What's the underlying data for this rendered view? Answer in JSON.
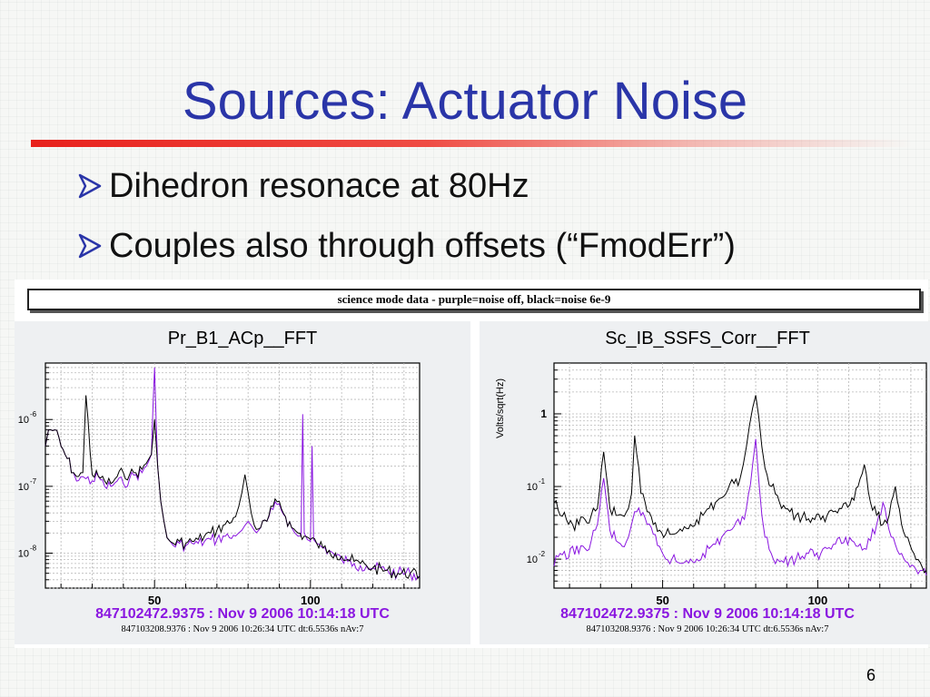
{
  "slide": {
    "title": "Sources: Actuator Noise",
    "bullets": [
      "Dihedron resonace at 80Hz",
      "Couples also through offsets (“FmodErr”)"
    ],
    "page_number": "6",
    "colors": {
      "title": "#2a35a8",
      "rule": "#e8211c",
      "bullet_arrow": "#2a35a8"
    }
  },
  "figure": {
    "banner": "science mode data - purple=noise off, black=noise 6e-9",
    "colors": {
      "noise_off": "#8a16e0",
      "noise_on": "#000000"
    }
  },
  "chart_data": [
    {
      "type": "line",
      "title": "Pr_B1_ACp__FFT",
      "xlabel": "",
      "ylabel": "",
      "xlim": [
        15,
        135
      ],
      "ylim": [
        3e-09,
        7e-06
      ],
      "yscale": "log",
      "grid": true,
      "x_ticks": [
        {
          "v": 50,
          "label": "50"
        },
        {
          "v": 100,
          "label": "100"
        }
      ],
      "y_ticks": [
        {
          "v": 1e-06,
          "base": "10",
          "exp": "-6"
        },
        {
          "v": 1e-07,
          "base": "10",
          "exp": "-7"
        },
        {
          "v": 1e-08,
          "base": "10",
          "exp": "-8"
        }
      ],
      "series": [
        {
          "legend_key": "noise off",
          "color": "#8a16e0",
          "x": [
            15,
            16,
            18,
            20,
            22,
            24,
            25,
            27,
            28,
            30,
            32,
            34,
            36,
            38,
            40,
            42,
            44,
            46,
            48,
            49,
            49.5,
            50,
            50.5,
            51,
            52,
            53,
            54,
            55,
            56,
            58,
            60,
            62,
            64,
            66,
            68,
            70,
            72,
            74,
            76,
            77,
            78,
            79,
            80,
            81,
            82,
            84,
            86,
            88,
            90,
            92,
            94,
            95,
            96,
            97,
            97.5,
            98,
            99,
            100,
            100.5,
            101,
            102,
            104,
            106,
            108,
            110,
            112,
            114,
            116,
            118,
            120,
            124,
            128,
            132,
            135
          ],
          "y": [
            4e-07,
            7e-07,
            7e-07,
            4e-07,
            2.6e-07,
            1.6e-07,
            1.2e-07,
            1.4e-07,
            1.3e-07,
            1.2e-07,
            1.4e-07,
            1e-07,
            1e-07,
            1.2e-07,
            1.1e-07,
            1.3e-07,
            1.5e-07,
            1.6e-07,
            2.3e-07,
            3e-07,
            1.5e-06,
            6e-06,
            1e-06,
            2e-07,
            6e-08,
            3e-08,
            1.7e-08,
            1.5e-08,
            1.3e-08,
            1.4e-08,
            1.3e-08,
            1.4e-08,
            1.4e-08,
            1.5e-08,
            1.6e-08,
            1.6e-08,
            1.8e-08,
            1.7e-08,
            1.8e-08,
            2e-08,
            2.2e-08,
            2.6e-08,
            3e-08,
            2.6e-08,
            2.2e-08,
            2.4e-08,
            3e-08,
            4.5e-08,
            5.5e-08,
            3.5e-08,
            2.4e-08,
            2e-08,
            1.8e-08,
            1.8e-08,
            1.2e-06,
            2e-08,
            1.6e-08,
            1.5e-08,
            4e-07,
            1.6e-08,
            1.4e-08,
            1.2e-08,
            1.1e-08,
            9e-09,
            8e-09,
            7.5e-09,
            7e-09,
            6.5e-09,
            6.5e-09,
            6e-09,
            5.5e-09,
            5e-09,
            5e-09,
            4.5e-09
          ]
        },
        {
          "legend_key": "noise 6e-9",
          "color": "#000000",
          "x": [
            15,
            16,
            18,
            20,
            22,
            24,
            25,
            27,
            28,
            30,
            32,
            34,
            36,
            38,
            40,
            42,
            44,
            46,
            48,
            49,
            50,
            51,
            52,
            53,
            54,
            55,
            56,
            58,
            60,
            62,
            64,
            66,
            68,
            70,
            72,
            74,
            76,
            77,
            78,
            79,
            80,
            81,
            82,
            84,
            86,
            88,
            90,
            92,
            94,
            96,
            98,
            100,
            102,
            104,
            106,
            108,
            110,
            112,
            114,
            116,
            118,
            120,
            124,
            128,
            132,
            135
          ],
          "y": [
            4e-07,
            7e-07,
            7e-07,
            4e-07,
            2.6e-07,
            1.6e-07,
            1.4e-07,
            1.6e-07,
            2.3e-06,
            1.5e-07,
            1.4e-07,
            1.2e-07,
            1.1e-07,
            1.4e-07,
            1.6e-07,
            1.5e-07,
            1.6e-07,
            1.8e-07,
            2.5e-07,
            3e-07,
            1e-06,
            2e-07,
            6e-08,
            3e-08,
            1.7e-08,
            1.5e-08,
            1.4e-08,
            1.5e-08,
            1.4e-08,
            1.5e-08,
            1.6e-08,
            1.8e-08,
            2e-08,
            2.2e-08,
            2.6e-08,
            2.8e-08,
            3.5e-08,
            5e-08,
            8e-08,
            1.5e-07,
            8e-08,
            4e-08,
            2.6e-08,
            2.4e-08,
            3e-08,
            5e-08,
            6e-08,
            3.5e-08,
            2.4e-08,
            2e-08,
            1.8e-08,
            1.6e-08,
            1.4e-08,
            1.2e-08,
            1.1e-08,
            1e-08,
            9e-09,
            8e-09,
            7.5e-09,
            7e-09,
            6.5e-09,
            6e-09,
            5.5e-09,
            5e-09,
            5e-09,
            4.5e-09
          ]
        }
      ],
      "timestamp_primary": "847102472.9375 : Nov  9 2006 10:14:18 UTC",
      "timestamp_secondary": "847103208.9376 : Nov  9 2006 10:26:34 UTC dt:6.5536s nAv:7"
    },
    {
      "type": "line",
      "title": "Sc_IB_SSFS_Corr__FFT",
      "xlabel": "",
      "ylabel": "Volts/sqrt(Hz)",
      "xlim": [
        15,
        135
      ],
      "ylim": [
        0.004,
        5
      ],
      "yscale": "log",
      "grid": true,
      "x_ticks": [
        {
          "v": 50,
          "label": "50"
        },
        {
          "v": 100,
          "label": "100"
        }
      ],
      "y_ticks": [
        {
          "v": 1,
          "label": "1"
        },
        {
          "v": 0.1,
          "base": "10",
          "exp": "-1"
        },
        {
          "v": 0.01,
          "base": "10",
          "exp": "-2"
        }
      ],
      "series": [
        {
          "legend_key": "noise off",
          "color": "#8a16e0",
          "x": [
            15,
            17,
            19,
            21,
            23,
            25,
            27,
            29,
            31,
            33,
            35,
            37,
            39,
            40,
            41,
            43,
            45,
            47,
            49,
            50,
            51,
            53,
            55,
            57,
            59,
            61,
            63,
            65,
            67,
            69,
            71,
            73,
            75,
            77,
            79,
            80,
            81,
            82,
            83,
            85,
            87,
            89,
            91,
            93,
            95,
            97,
            99,
            101,
            103,
            105,
            107,
            109,
            111,
            113,
            115,
            117,
            119,
            121,
            123,
            125,
            127,
            129,
            131,
            133,
            135
          ],
          "y": [
            0.008,
            0.012,
            0.01,
            0.015,
            0.012,
            0.014,
            0.018,
            0.03,
            0.13,
            0.025,
            0.018,
            0.015,
            0.02,
            0.03,
            0.045,
            0.04,
            0.03,
            0.022,
            0.015,
            0.012,
            0.01,
            0.01,
            0.009,
            0.009,
            0.01,
            0.01,
            0.012,
            0.014,
            0.016,
            0.02,
            0.025,
            0.028,
            0.03,
            0.05,
            0.2,
            0.45,
            0.12,
            0.04,
            0.02,
            0.012,
            0.01,
            0.009,
            0.01,
            0.01,
            0.011,
            0.012,
            0.011,
            0.012,
            0.014,
            0.016,
            0.02,
            0.02,
            0.018,
            0.015,
            0.014,
            0.018,
            0.03,
            0.06,
            0.025,
            0.016,
            0.012,
            0.009,
            0.008,
            0.007,
            0.006
          ]
        },
        {
          "legend_key": "noise 6e-9",
          "color": "#000000",
          "x": [
            15,
            17,
            19,
            21,
            23,
            25,
            27,
            29,
            31,
            33,
            35,
            37,
            39,
            40,
            41,
            43,
            45,
            47,
            49,
            51,
            53,
            55,
            57,
            59,
            61,
            63,
            65,
            67,
            69,
            71,
            73,
            75,
            76,
            77,
            78,
            79,
            80,
            81,
            82,
            83,
            85,
            87,
            89,
            91,
            93,
            95,
            97,
            99,
            101,
            103,
            105,
            107,
            109,
            111,
            113,
            115,
            117,
            119,
            121,
            123,
            125,
            127,
            129,
            131,
            133,
            135
          ],
          "y": [
            0.06,
            0.04,
            0.035,
            0.03,
            0.03,
            0.035,
            0.04,
            0.05,
            0.3,
            0.05,
            0.04,
            0.04,
            0.05,
            0.08,
            0.5,
            0.08,
            0.045,
            0.03,
            0.025,
            0.022,
            0.022,
            0.024,
            0.028,
            0.03,
            0.035,
            0.04,
            0.05,
            0.06,
            0.07,
            0.09,
            0.11,
            0.13,
            0.2,
            0.35,
            0.7,
            1.2,
            1.8,
            0.9,
            0.35,
            0.18,
            0.1,
            0.075,
            0.055,
            0.045,
            0.04,
            0.038,
            0.036,
            0.035,
            0.035,
            0.04,
            0.045,
            0.05,
            0.06,
            0.07,
            0.1,
            0.2,
            0.06,
            0.04,
            0.03,
            0.04,
            0.1,
            0.03,
            0.02,
            0.012,
            0.009,
            0.007
          ]
        }
      ],
      "timestamp_primary": "847102472.9375 : Nov  9 2006 10:14:18 UTC",
      "timestamp_secondary": "847103208.9376 : Nov  9 2006 10:26:34 UTC dt:6.5536s nAv:7"
    }
  ]
}
